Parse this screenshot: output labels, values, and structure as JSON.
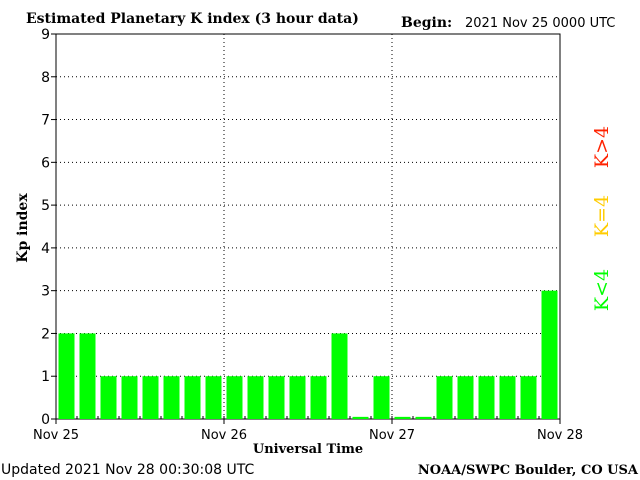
{
  "chart_data": {
    "type": "bar",
    "title": "Estimated Planetary K index (3 hour data)",
    "begin_label": "Begin:",
    "begin_value": "2021 Nov 25 0000 UTC",
    "xlabel": "Universal Time",
    "ylabel": "Kp index",
    "ylim": [
      0,
      9
    ],
    "yticks": [
      "0",
      "1",
      "2",
      "3",
      "4",
      "5",
      "6",
      "7",
      "8",
      "9"
    ],
    "x_date_labels": [
      "Nov 25",
      "Nov 26",
      "Nov 27",
      "Nov 28"
    ],
    "values": [
      2,
      2,
      1,
      1,
      1,
      1,
      1,
      1,
      1,
      1,
      1,
      1,
      1,
      2,
      0.05,
      1,
      0.05,
      0.05,
      1,
      1,
      1,
      1,
      1,
      3
    ],
    "bar_color": "#00ff00",
    "grid": "dotted vertical lines at day boundaries, dotted horizontal lines at each integer",
    "legend": {
      "items": [
        {
          "label": "K<4",
          "color": "#00ff00"
        },
        {
          "label": "K=4",
          "color": "#ffcc00"
        },
        {
          "label": "K>4",
          "color": "#ff2200"
        }
      ],
      "placement": "right, vertical text"
    }
  },
  "footer": {
    "updated": "Updated 2021 Nov 28 00:30:08 UTC",
    "credit": "NOAA/SWPC Boulder, CO USA"
  }
}
